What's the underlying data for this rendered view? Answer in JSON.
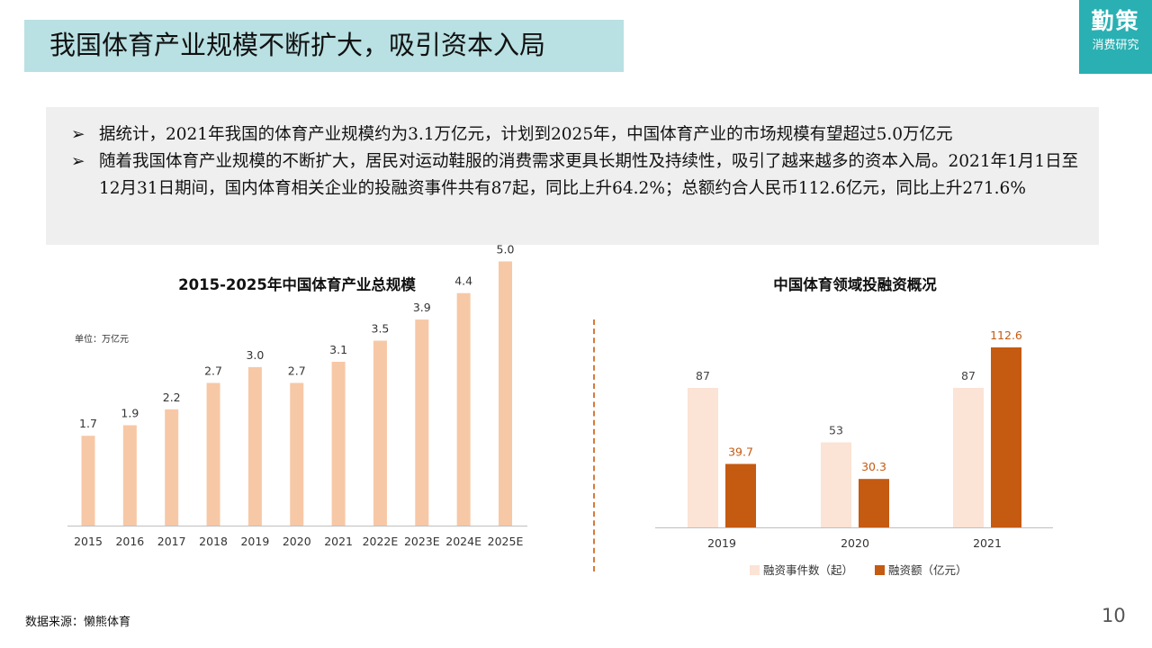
{
  "header": {
    "title": "我国体育产业规模不断扩大，吸引资本入局",
    "logo_main": "勤策",
    "logo_sub": "消费研究"
  },
  "summary": {
    "bullets": [
      "据统计，2021年我国的体育产业规模约为3.1万亿元，计划到2025年，中国体育产业的市场规模有望超过5.0万亿元",
      "随着我国体育产业规模的不断扩大，居民对运动鞋服的消费需求更具长期性及持续性，吸引了越来越多的资本入局。2021年1月1日至12月31日期间，国内体育相关企业的投融资事件共有87起，同比上升64.2%；总额约合人民币112.6亿元，同比上升271.6%"
    ]
  },
  "footer": {
    "source": "数据来源：懒熊体育",
    "page": "10"
  },
  "chart_data": [
    {
      "type": "bar",
      "title": "2015-2025年中国体育产业总规模",
      "unit_label": "单位：万亿元",
      "categories": [
        "2015",
        "2016",
        "2017",
        "2018",
        "2019",
        "2020",
        "2021",
        "2022E",
        "2023E",
        "2024E",
        "2025E"
      ],
      "values": [
        1.7,
        1.9,
        2.2,
        2.7,
        3.0,
        2.7,
        3.1,
        3.5,
        3.9,
        4.4,
        5.0
      ],
      "labels": [
        "1.7",
        "1.9",
        "2.2",
        "2.7",
        "3.0",
        "2.7",
        "3.1",
        "3.5",
        "3.9",
        "4.4",
        "5.0"
      ],
      "ylim": [
        0,
        5.8
      ],
      "color": "#f7c8a6",
      "grid": false
    },
    {
      "type": "bar",
      "title": "中国体育领域投融资概况",
      "categories": [
        "2019",
        "2020",
        "2021"
      ],
      "series": [
        {
          "name": "融资事件数（起）",
          "values": [
            87,
            53,
            87
          ],
          "labels": [
            "87",
            "53",
            "87"
          ],
          "color": "#fbe3d5",
          "label_color": "#444444"
        },
        {
          "name": "融资额（亿元）",
          "values": [
            39.7,
            30.3,
            112.6
          ],
          "labels": [
            "39.7",
            "30.3",
            "112.6"
          ],
          "color": "#c55a11",
          "label_color": "#c55a11"
        }
      ],
      "legend": "bottom",
      "grid": false
    }
  ]
}
